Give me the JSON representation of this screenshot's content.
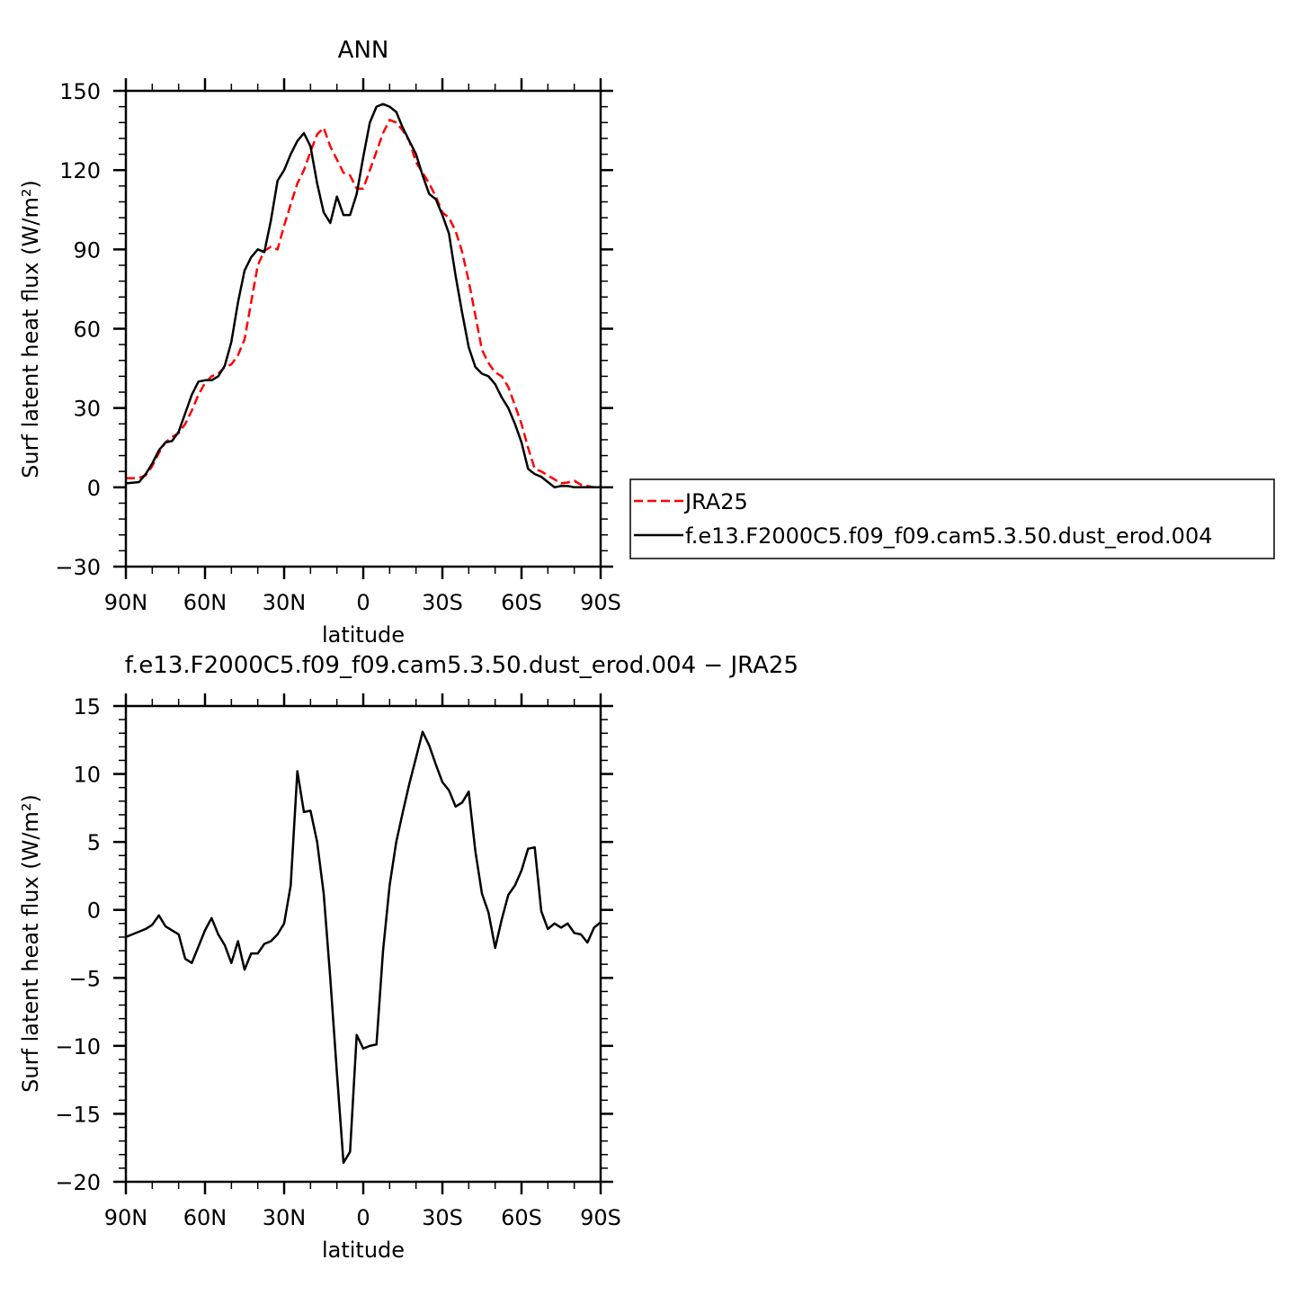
{
  "chart_data": [
    {
      "type": "line",
      "title": "ANN",
      "xlabel": "latitude",
      "ylabel": "Surf latent heat flux (W/m²)",
      "xlim": [
        -90,
        90
      ],
      "ylim": [
        -30,
        150
      ],
      "x_ticks": [
        -90,
        -60,
        -30,
        0,
        30,
        60,
        90
      ],
      "x_tick_labels": [
        "90N",
        "60N",
        "30N",
        "0",
        "30S",
        "60S",
        "90S"
      ],
      "y_ticks": [
        -30,
        0,
        30,
        60,
        90,
        120,
        150
      ],
      "y_tick_labels": [
        "−30",
        "0",
        "30",
        "60",
        "90",
        "120",
        "150"
      ],
      "legend": {
        "placement": "right"
      },
      "series": [
        {
          "name": "JRA25",
          "color": "#ff0000",
          "style": "dashed",
          "x": [
            -90,
            -87.5,
            -85,
            -82.5,
            -80,
            -77.5,
            -75,
            -72.5,
            -70,
            -67.5,
            -65,
            -62.5,
            -60,
            -57.5,
            -55,
            -52.5,
            -50,
            -47.5,
            -45,
            -42.5,
            -40,
            -37.5,
            -35,
            -32.5,
            -30,
            -27.5,
            -25,
            -22.5,
            -20,
            -17.5,
            -15,
            -12.5,
            -10,
            -7.5,
            -5,
            -2.5,
            0,
            2.5,
            5,
            7.5,
            10,
            12.5,
            15,
            17.5,
            20,
            22.5,
            25,
            27.5,
            30,
            32.5,
            35,
            37.5,
            40,
            42.5,
            45,
            47.5,
            50,
            52.5,
            55,
            57.5,
            60,
            62.5,
            65,
            67.5,
            70,
            72.5,
            75,
            77.5,
            80,
            82.5,
            85,
            87.5,
            90
          ],
          "values": [
            3.5,
            3.4,
            3.6,
            4.5,
            8,
            13,
            17,
            19,
            20.5,
            24,
            29,
            35,
            39.5,
            42,
            43,
            45.5,
            46.5,
            50,
            56,
            70,
            84,
            89.5,
            91,
            90,
            99,
            107,
            115,
            120,
            127,
            133.5,
            136,
            129,
            124,
            119,
            118,
            113,
            113,
            120,
            127,
            134,
            139,
            138,
            135,
            131,
            123,
            119,
            115,
            110,
            104,
            102,
            97,
            89,
            78,
            65,
            52,
            47,
            43.5,
            42,
            38,
            31,
            24,
            15,
            7,
            6,
            4.5,
            3,
            1.5,
            1.8,
            2.5,
            1,
            0.5,
            0,
            0
          ]
        },
        {
          "name": "f.e13.F2000C5.f09_f09.cam5.3.50.dust_erod.004",
          "color": "#000000",
          "style": "solid",
          "x": [
            -90,
            -87.5,
            -85,
            -82.5,
            -80,
            -77.5,
            -75,
            -72.5,
            -70,
            -67.5,
            -65,
            -62.5,
            -60,
            -57.5,
            -55,
            -52.5,
            -50,
            -47.5,
            -45,
            -42.5,
            -40,
            -37.5,
            -35,
            -32.5,
            -30,
            -27.5,
            -25,
            -22.5,
            -20,
            -17.5,
            -15,
            -12.5,
            -10,
            -7.5,
            -5,
            -2.5,
            0,
            2.5,
            5,
            7.5,
            10,
            12.5,
            15,
            17.5,
            20,
            22.5,
            25,
            27.5,
            30,
            32.5,
            35,
            37.5,
            40,
            42.5,
            45,
            47.5,
            50,
            52.5,
            55,
            57.5,
            60,
            62.5,
            65,
            67.5,
            70,
            72.5,
            75,
            77.5,
            80,
            82.5,
            85,
            87.5,
            90
          ],
          "values": [
            1.5,
            1.7,
            2,
            5,
            9,
            14,
            17,
            17.5,
            21,
            28,
            35,
            40,
            40.5,
            40.5,
            42,
            46,
            55,
            70,
            82,
            87,
            90,
            89,
            101,
            116,
            120,
            126,
            131,
            134,
            129,
            115,
            104,
            100,
            110,
            103,
            103,
            111,
            125,
            138,
            144,
            145,
            144,
            142,
            136,
            131,
            126,
            118,
            111,
            109,
            103,
            96,
            80,
            66,
            53,
            45.5,
            43,
            42,
            39,
            34,
            30,
            24,
            17,
            7,
            5,
            4,
            2,
            0,
            0.5,
            0.5,
            0,
            0,
            0,
            0,
            0
          ]
        }
      ]
    },
    {
      "type": "line",
      "title": "f.e13.F2000C5.f09_f09.cam5.3.50.dust_erod.004 − JRA25",
      "xlabel": "latitude",
      "ylabel": "Surf latent heat flux (W/m²)",
      "xlim": [
        -90,
        90
      ],
      "ylim": [
        -20,
        15
      ],
      "x_ticks": [
        -90,
        -60,
        -30,
        0,
        30,
        60,
        90
      ],
      "x_tick_labels": [
        "90N",
        "60N",
        "30N",
        "0",
        "30S",
        "60S",
        "90S"
      ],
      "y_ticks": [
        -20,
        -15,
        -10,
        -5,
        0,
        5,
        10,
        15
      ],
      "y_tick_labels": [
        "−20",
        "−15",
        "−10",
        "−5",
        "0",
        "5",
        "10",
        "15"
      ],
      "series": [
        {
          "color": "#000000",
          "style": "solid",
          "x": [
            -90,
            -87.5,
            -85,
            -82.5,
            -80,
            -77.5,
            -75,
            -72.5,
            -70,
            -67.5,
            -65,
            -62.5,
            -60,
            -57.5,
            -55,
            -52.5,
            -50,
            -47.5,
            -45,
            -42.5,
            -40,
            -37.5,
            -35,
            -32.5,
            -30,
            -27.5,
            -25,
            -22.5,
            -20,
            -17.5,
            -15,
            -12.5,
            -10,
            -7.5,
            -5,
            -2.5,
            0,
            2.5,
            5,
            7.5,
            10,
            12.5,
            15,
            17.5,
            20,
            22.5,
            25,
            27.5,
            30,
            32.5,
            35,
            37.5,
            40,
            42.5,
            45,
            47.5,
            50,
            52.5,
            55,
            57.5,
            60,
            62.5,
            65,
            67.5,
            70,
            72.5,
            75,
            77.5,
            80,
            82.5,
            85,
            87.5,
            90
          ],
          "values": [
            -2,
            -1.8,
            -1.6,
            -1.4,
            -1.1,
            -0.4,
            -1.2,
            -1.5,
            -1.8,
            -3.6,
            -3.9,
            -2.7,
            -1.5,
            -0.6,
            -1.8,
            -2.6,
            -3.9,
            -2.3,
            -4.4,
            -3.2,
            -3.2,
            -2.5,
            -2.3,
            -1.8,
            -1,
            1.8,
            10.2,
            7.2,
            7.3,
            5,
            1.2,
            -5,
            -12,
            -18.6,
            -17.8,
            -9.2,
            -10.2,
            -10,
            -9.9,
            -3,
            1.8,
            5,
            7.2,
            9.3,
            11.2,
            13.1,
            12.1,
            10.7,
            9.4,
            8.8,
            7.6,
            7.9,
            8.7,
            4.3,
            1.2,
            -0.2,
            -2.8,
            -0.7,
            1.1,
            1.8,
            2.9,
            4.5,
            4.6,
            -0.1,
            -1.4,
            -1,
            -1.3,
            -1,
            -1.7,
            -1.8,
            -2.4,
            -1.3,
            -0.9
          ]
        }
      ]
    }
  ]
}
